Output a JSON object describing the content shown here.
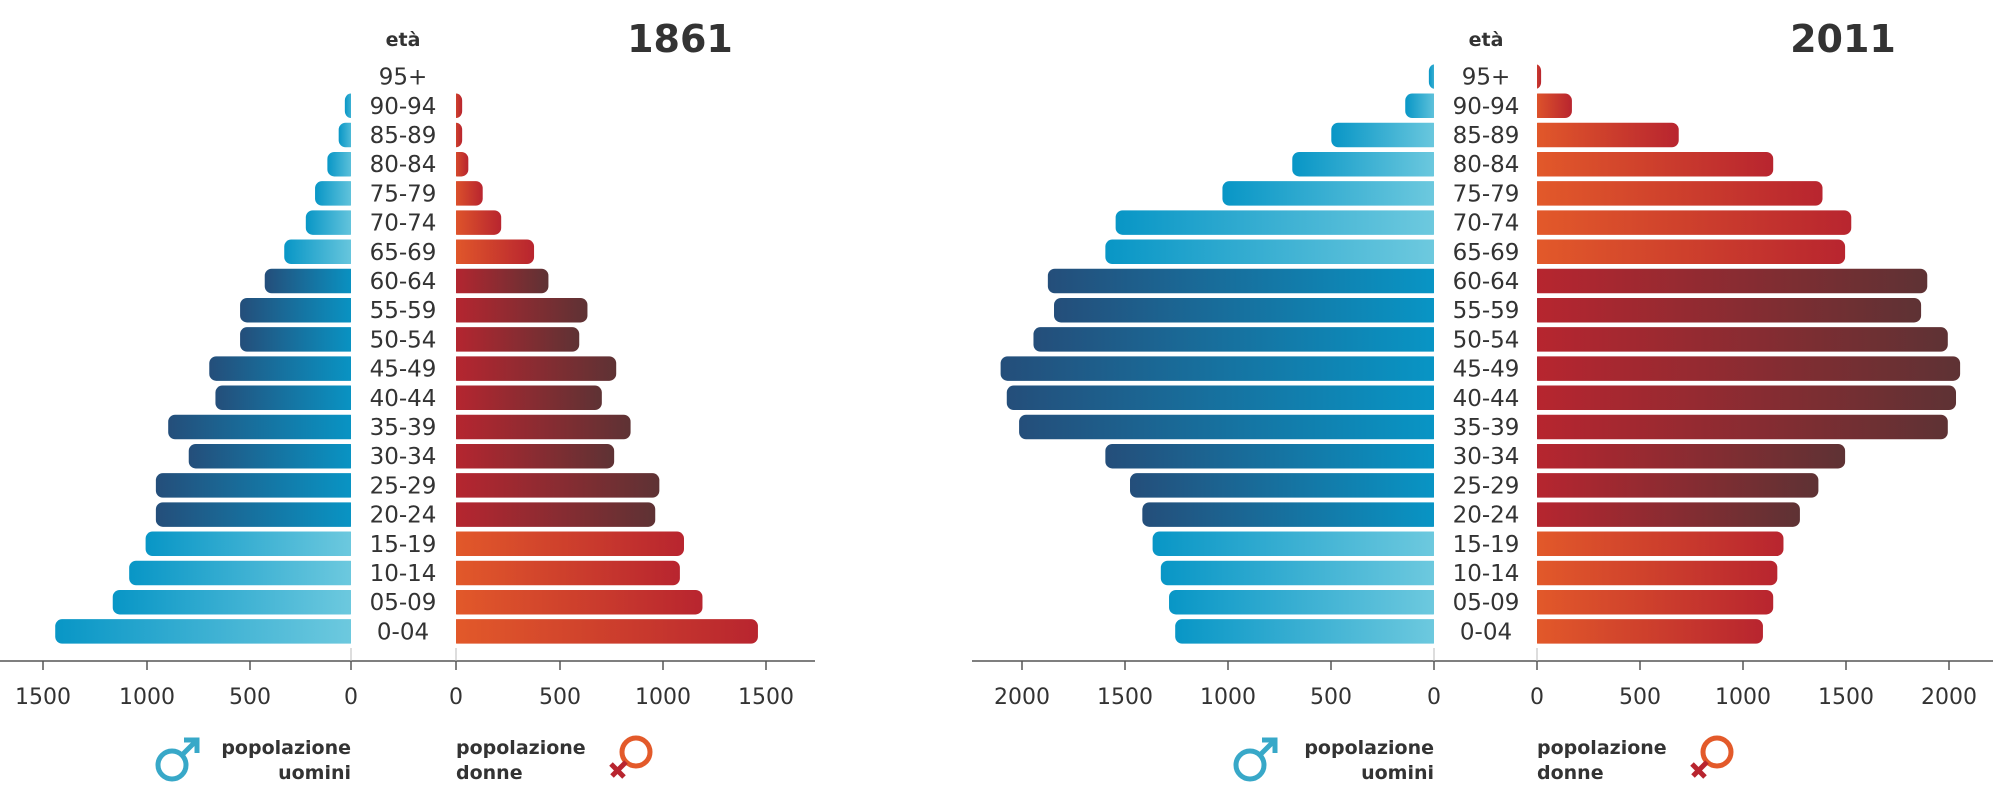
{
  "age_header": "età",
  "legend": {
    "men_line1": "popolazione",
    "men_line2": "uomini",
    "women_line1": "popolazione",
    "women_line2": "donne"
  },
  "colors": {
    "men_light": "#6fcadf",
    "men_mid": "#0896c6",
    "men_dark": "#244e7a",
    "women_light": "#e35a2a",
    "women_mid": "#b8252f",
    "women_dark": "#5e3234",
    "men_symbol": "#38a8c8",
    "women_symbol": "#b8252f",
    "text": "#333333"
  },
  "chart_data": [
    {
      "type": "bar",
      "title": "1861",
      "categories": [
        "95+",
        "90-94",
        "85-89",
        "80-84",
        "75-79",
        "70-74",
        "65-69",
        "60-64",
        "55-59",
        "50-54",
        "45-49",
        "40-44",
        "35-39",
        "30-34",
        "25-29",
        "20-24",
        "15-19",
        "10-14",
        "05-09",
        "0-04"
      ],
      "series": [
        {
          "name": "popolazione uomini",
          "values": [
            0,
            30,
            60,
            115,
            175,
            220,
            325,
            420,
            540,
            540,
            690,
            660,
            890,
            790,
            950,
            950,
            1000,
            1080,
            1160,
            1440
          ]
        },
        {
          "name": "popolazione donne",
          "values": [
            0,
            30,
            30,
            60,
            130,
            220,
            380,
            450,
            640,
            600,
            780,
            710,
            850,
            770,
            990,
            970,
            1110,
            1090,
            1200,
            1470
          ]
        }
      ],
      "axis_ticks_left": [
        1500,
        1000,
        500,
        0
      ],
      "axis_ticks_right": [
        0,
        500,
        1000,
        1500
      ],
      "xlim": [
        0,
        1500
      ]
    },
    {
      "type": "bar",
      "title": "2011",
      "categories": [
        "95+",
        "90-94",
        "85-89",
        "80-84",
        "75-79",
        "70-74",
        "65-69",
        "60-64",
        "55-59",
        "50-54",
        "45-49",
        "40-44",
        "35-39",
        "30-34",
        "25-29",
        "20-24",
        "15-19",
        "10-14",
        "05-09",
        "0-04"
      ],
      "series": [
        {
          "name": "popolazione uomini",
          "values": [
            25,
            140,
            500,
            690,
            1030,
            1550,
            1600,
            1880,
            1850,
            1950,
            2110,
            2080,
            2020,
            1600,
            1480,
            1420,
            1370,
            1330,
            1290,
            1260
          ]
        },
        {
          "name": "popolazione donne",
          "values": [
            20,
            170,
            690,
            1150,
            1390,
            1530,
            1500,
            1900,
            1870,
            2000,
            2060,
            2040,
            2000,
            1500,
            1370,
            1280,
            1200,
            1170,
            1150,
            1100
          ]
        }
      ],
      "axis_ticks_left": [
        2000,
        1500,
        1000,
        500,
        0
      ],
      "axis_ticks_right": [
        0,
        500,
        1000,
        1500,
        2000
      ],
      "xlim": [
        0,
        2060
      ]
    }
  ]
}
